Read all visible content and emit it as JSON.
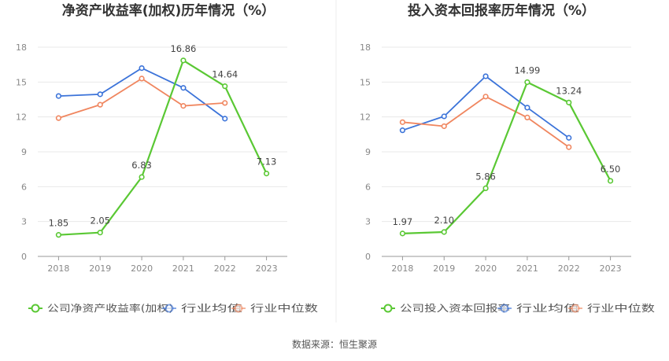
{
  "chart_data": [
    {
      "type": "line",
      "title": "净资产收益率(加权)历年情况（%）",
      "categories": [
        "2018",
        "2019",
        "2020",
        "2021",
        "2022",
        "2023"
      ],
      "yticks": [
        0,
        3,
        6,
        9,
        12,
        15,
        18
      ],
      "ylim": [
        0,
        18
      ],
      "grid": true,
      "legend_position": "bottom",
      "series": [
        {
          "name": "公司净资产收益率(加权)",
          "color": "#5ac834",
          "values": [
            1.85,
            2.05,
            6.83,
            16.86,
            14.64,
            7.13
          ],
          "labels": [
            "1.85",
            "2.05",
            "6.83",
            "16.86",
            "14.64",
            "7.13"
          ]
        },
        {
          "name": "行业均值",
          "color": "#3b73d9",
          "values": [
            13.8,
            13.95,
            16.2,
            14.5,
            11.85,
            null
          ]
        },
        {
          "name": "行业中位数",
          "color": "#f0865f",
          "values": [
            11.9,
            13.05,
            15.3,
            12.95,
            13.2,
            null
          ]
        }
      ]
    },
    {
      "type": "line",
      "title": "投入资本回报率历年情况（%）",
      "categories": [
        "2018",
        "2019",
        "2020",
        "2021",
        "2022",
        "2023"
      ],
      "yticks": [
        0,
        3,
        6,
        9,
        12,
        15,
        18
      ],
      "ylim": [
        0,
        18
      ],
      "grid": true,
      "legend_position": "bottom",
      "series": [
        {
          "name": "公司投入资本回报率",
          "color": "#5ac834",
          "values": [
            1.97,
            2.1,
            5.86,
            14.99,
            13.24,
            6.5
          ],
          "labels": [
            "1.97",
            "2.10",
            "5.86",
            "14.99",
            "13.24",
            "6.50"
          ]
        },
        {
          "name": "行业均值",
          "color": "#3b73d9",
          "values": [
            10.85,
            12.05,
            15.5,
            12.8,
            10.2,
            null
          ]
        },
        {
          "name": "行业中位数",
          "color": "#f0865f",
          "values": [
            11.55,
            11.2,
            13.75,
            11.95,
            9.4,
            null
          ]
        }
      ]
    }
  ],
  "footer": {
    "source": "数据来源：恒生聚源"
  }
}
